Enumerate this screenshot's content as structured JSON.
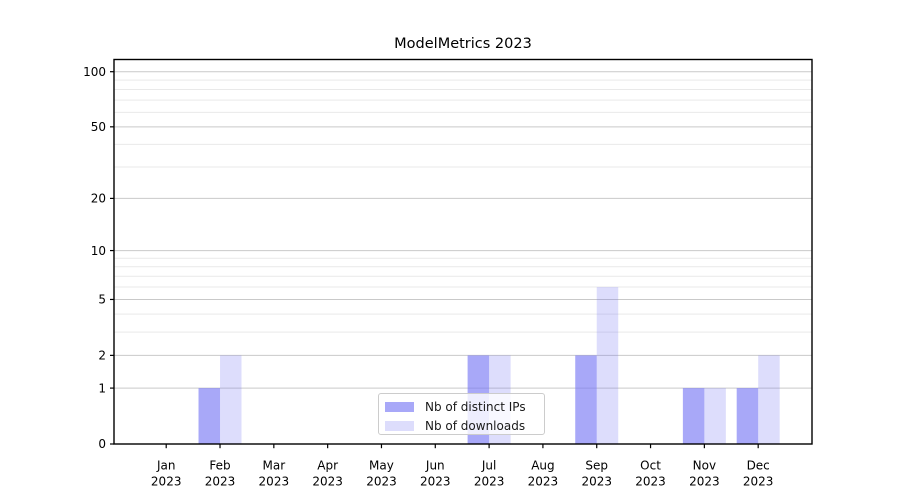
{
  "chart_data": {
    "type": "bar",
    "title": "ModelMetrics 2023",
    "categories": [
      "Jan",
      "Feb",
      "Mar",
      "Apr",
      "May",
      "Jun",
      "Jul",
      "Aug",
      "Sep",
      "Oct",
      "Nov",
      "Dec"
    ],
    "category_year": "2023",
    "series": [
      {
        "name": "Nb of distinct IPs",
        "values": [
          0,
          1,
          0,
          0,
          0,
          0,
          2,
          0,
          2,
          0,
          1,
          1
        ],
        "color": "#7979f4",
        "opacity": 0.65
      },
      {
        "name": "Nb of downloads",
        "values": [
          0,
          2,
          0,
          0,
          0,
          0,
          2,
          0,
          6,
          0,
          1,
          2
        ],
        "color": "#7979f4",
        "opacity": 0.25
      }
    ],
    "xlabel": "",
    "ylabel": "",
    "yscale": "log1p",
    "yticks": [
      0,
      1,
      2,
      5,
      10,
      20,
      50,
      100
    ],
    "yticks_minor": [
      3,
      4,
      6,
      7,
      8,
      9,
      30,
      40,
      60,
      70,
      80,
      90
    ],
    "ylim": [
      0,
      116.5
    ],
    "grid": true,
    "legend_position": "inside-bottom-center"
  },
  "colors": {
    "major_grid": "#c9c9c9",
    "minor_grid": "#e9e9e9",
    "axis": "#000000",
    "text": "#000000"
  }
}
